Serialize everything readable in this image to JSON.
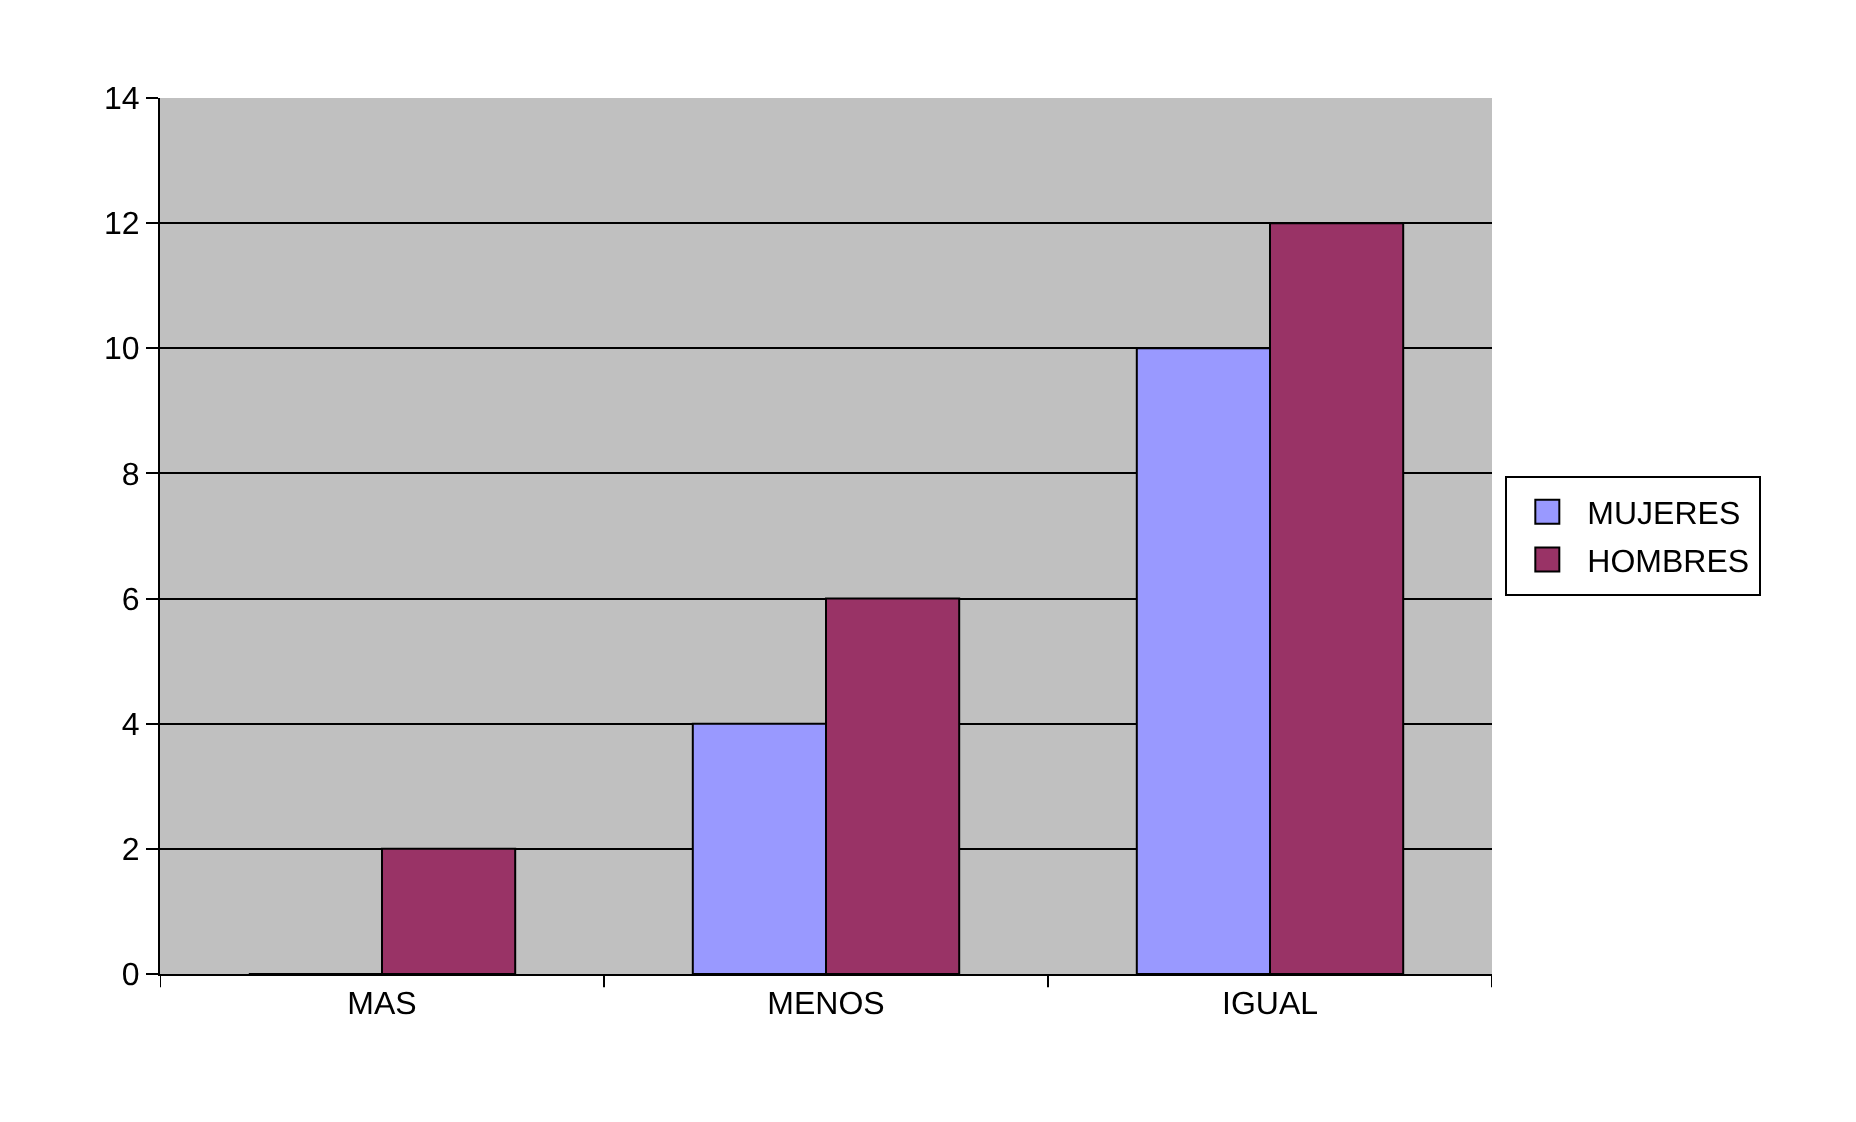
{
  "chart_data": {
    "type": "bar",
    "categories": [
      "MAS",
      "MENOS",
      "IGUAL"
    ],
    "series": [
      {
        "name": "MUJERES",
        "color": "#9999ff",
        "values": [
          0,
          4,
          10
        ]
      },
      {
        "name": "HOMBRES",
        "color": "#993366",
        "values": [
          2,
          6,
          12
        ]
      }
    ],
    "ylim": [
      0,
      14
    ],
    "yticks": [
      0,
      2,
      4,
      6,
      8,
      10,
      12,
      14
    ],
    "grid": "y",
    "legend": "right"
  }
}
